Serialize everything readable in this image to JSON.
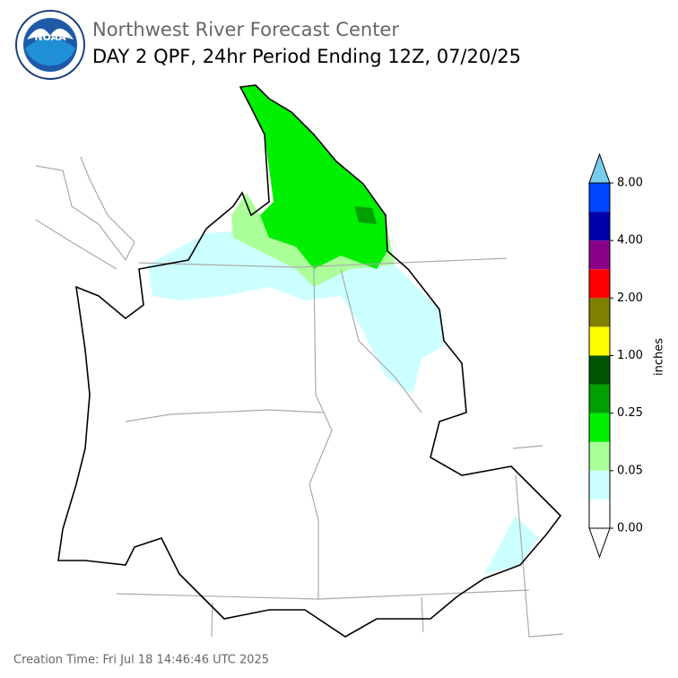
{
  "header": {
    "title": "Northwest River Forecast Center",
    "subtitle": "DAY 2 QPF, 24hr Period Ending 12Z, 07/20/25",
    "logo_text": "NOAA"
  },
  "colorbar": {
    "label": "inches",
    "ticks": [
      "0.00",
      "0.05",
      "0.25",
      "1.00",
      "2.00",
      "4.00",
      "8.00"
    ],
    "colors": [
      "#ffffff",
      "#ccffff",
      "#aaff99",
      "#00ee00",
      "#00a000",
      "#005500",
      "#ffff00",
      "#808000",
      "#ff0000",
      "#880088",
      "#0000aa",
      "#0044ff"
    ],
    "over_color": "#77ccee",
    "under_color": "#ffffff"
  },
  "footer": {
    "creation_time": "Creation Time: Fri Jul 18 14:46:46 UTC 2025"
  }
}
